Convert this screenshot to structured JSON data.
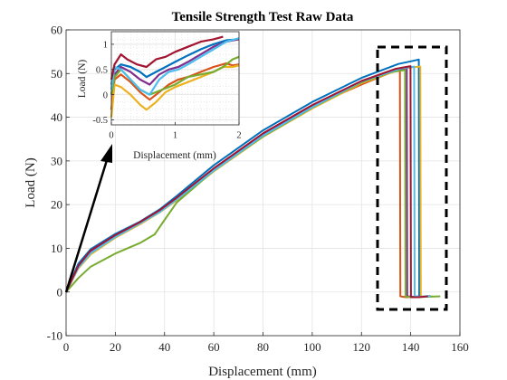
{
  "chart_data": [
    {
      "id": "main",
      "type": "line",
      "title": "Tensile Strength Test Raw Data",
      "xlabel": "Displacement (mm)",
      "ylabel": "Load (N)",
      "xlim": [
        0,
        160
      ],
      "ylim": [
        -10,
        60
      ],
      "xticks": [
        0,
        20,
        40,
        60,
        80,
        100,
        120,
        140,
        160
      ],
      "yticks": [
        -10,
        0,
        10,
        20,
        30,
        40,
        50,
        60
      ],
      "grid": true,
      "series": [
        {
          "color": "#0072BD",
          "x": [
            0,
            5,
            10,
            20,
            30,
            38,
            45,
            60,
            80,
            100,
            120,
            135,
            140,
            143.3,
            143.5,
            144,
            146,
            148
          ],
          "y": [
            0,
            6.5,
            9.8,
            13.3,
            16.1,
            18.9,
            22,
            29,
            37,
            43.5,
            49,
            52.2,
            52.8,
            53.2,
            -1,
            -1.1,
            -1,
            -0.9
          ]
        },
        {
          "color": "#D95319",
          "x": [
            0,
            5,
            10,
            20,
            30,
            38,
            45,
            60,
            80,
            100,
            120,
            133,
            135.6,
            135.8,
            138,
            141,
            144
          ],
          "y": [
            0,
            5.7,
            9.0,
            12.7,
            15.6,
            18.4,
            21.3,
            28,
            36,
            42.5,
            47.5,
            50.5,
            51.1,
            -1,
            -1.2,
            -1.1,
            -1
          ]
        },
        {
          "color": "#EDB120",
          "x": [
            0,
            5,
            10,
            20,
            30,
            38,
            45,
            60,
            80,
            100,
            120,
            135,
            140,
            143.9,
            144.1,
            146,
            149
          ],
          "y": [
            0,
            5.4,
            8.6,
            12.4,
            15.5,
            18.2,
            21,
            27.6,
            35.5,
            42,
            47.8,
            50.8,
            51.4,
            51.6,
            -1,
            -1.1,
            -1
          ]
        },
        {
          "color": "#7E2F8E",
          "x": [
            0,
            5,
            10,
            20,
            30,
            38,
            45,
            60,
            80,
            100,
            120,
            132,
            138.4,
            138.6,
            141,
            144
          ],
          "y": [
            0,
            5.8,
            9.3,
            12.9,
            15.9,
            18.6,
            21.5,
            28.2,
            36.2,
            42.6,
            48,
            50.6,
            51.3,
            -1,
            -1.1,
            -1
          ]
        },
        {
          "color": "#77AC30",
          "x": [
            0,
            5,
            10,
            20,
            30,
            36,
            40,
            45,
            60,
            80,
            100,
            120,
            132,
            137.7,
            137.9,
            142,
            147,
            152
          ],
          "y": [
            0,
            3.2,
            5.8,
            8.8,
            11.2,
            13.2,
            16.5,
            20.5,
            27.8,
            35.6,
            42.2,
            48,
            50.3,
            50.8,
            -1.1,
            -1.2,
            -1.1,
            -1
          ]
        },
        {
          "color": "#4DBEEE",
          "x": [
            0,
            5,
            10,
            20,
            30,
            38,
            45,
            60,
            80,
            100,
            120,
            136,
            141.4,
            141.6,
            144,
            148
          ],
          "y": [
            0,
            5.6,
            8.9,
            12.6,
            15.7,
            18.3,
            21.2,
            27.8,
            35.8,
            42.3,
            48.2,
            51.2,
            51.6,
            -1,
            -1.1,
            -1
          ]
        },
        {
          "color": "#A2142F",
          "x": [
            0,
            5,
            10,
            20,
            30,
            38,
            45,
            60,
            80,
            100,
            120,
            134,
            139.9,
            140.1,
            143,
            147
          ],
          "y": [
            0,
            6,
            9.5,
            13,
            16,
            18.7,
            21.6,
            28.3,
            36.3,
            42.8,
            48.3,
            51.1,
            51.7,
            -1.2,
            -1.2,
            -1
          ]
        }
      ]
    },
    {
      "id": "inset",
      "type": "line",
      "xlabel": "Displacement (mm)",
      "ylabel": "Load (N)",
      "xlim": [
        0,
        2
      ],
      "ylim": [
        -0.6,
        1.25
      ],
      "xticks": [
        0,
        1,
        2
      ],
      "yticks": [
        -0.5,
        0,
        0.5,
        1
      ],
      "grid": true,
      "minor_grid": true,
      "series": [
        {
          "color": "#0072BD",
          "x": [
            0,
            0.05,
            0.15,
            0.3,
            0.45,
            0.55,
            0.7,
            0.85,
            1.0,
            1.2,
            1.4,
            1.6,
            1.8,
            2.0
          ],
          "y": [
            0.2,
            0.5,
            0.6,
            0.55,
            0.45,
            0.35,
            0.45,
            0.55,
            0.65,
            0.78,
            0.9,
            1.0,
            1.08,
            1.1
          ]
        },
        {
          "color": "#D95319",
          "x": [
            0,
            0.05,
            0.15,
            0.3,
            0.45,
            0.6,
            0.75,
            0.9,
            1.05,
            1.2,
            1.4,
            1.6,
            1.8,
            1.9,
            2.0
          ],
          "y": [
            -0.3,
            0.3,
            0.4,
            0.25,
            0.05,
            -0.1,
            0.05,
            0.2,
            0.3,
            0.35,
            0.45,
            0.55,
            0.62,
            0.58,
            0.6
          ]
        },
        {
          "color": "#EDB120",
          "x": [
            0,
            0.05,
            0.15,
            0.3,
            0.45,
            0.55,
            0.7,
            0.85,
            1.0,
            1.2,
            1.4,
            1.6,
            1.75,
            1.9,
            2.0
          ],
          "y": [
            -0.45,
            0.2,
            0.15,
            0.0,
            -0.2,
            -0.3,
            -0.15,
            0.05,
            0.15,
            0.25,
            0.35,
            0.45,
            0.55,
            0.55,
            0.58
          ]
        },
        {
          "color": "#7E2F8E",
          "x": [
            0,
            0.05,
            0.15,
            0.3,
            0.45,
            0.6,
            0.75,
            0.9,
            1.05,
            1.2,
            1.4,
            1.6,
            1.8,
            2.0
          ],
          "y": [
            0.0,
            0.4,
            0.55,
            0.45,
            0.3,
            0.2,
            0.4,
            0.5,
            0.55,
            0.65,
            0.8,
            0.95,
            1.05,
            1.1
          ]
        },
        {
          "color": "#77AC30",
          "x": [
            0,
            0.05,
            0.15,
            0.3,
            0.45,
            0.6,
            0.8,
            1.0,
            1.2,
            1.4,
            1.6,
            1.75,
            1.9,
            2.0
          ],
          "y": [
            0.0,
            0.35,
            0.5,
            0.3,
            0.1,
            0.0,
            0.1,
            0.2,
            0.35,
            0.4,
            0.45,
            0.55,
            0.7,
            0.75
          ]
        },
        {
          "color": "#4DBEEE",
          "x": [
            0,
            0.05,
            0.15,
            0.3,
            0.45,
            0.6,
            0.75,
            0.9,
            1.05,
            1.2,
            1.4,
            1.6,
            1.8,
            2.0
          ],
          "y": [
            0.1,
            0.55,
            0.5,
            0.3,
            0.1,
            0.0,
            0.3,
            0.45,
            0.5,
            0.6,
            0.75,
            0.9,
            1.05,
            1.12
          ]
        },
        {
          "color": "#A2142F",
          "x": [
            0,
            0.05,
            0.15,
            0.25,
            0.4,
            0.55,
            0.7,
            0.85,
            1.0,
            1.2,
            1.4,
            1.6,
            1.75
          ],
          "y": [
            0.3,
            0.6,
            0.8,
            0.7,
            0.6,
            0.55,
            0.7,
            0.75,
            0.85,
            0.95,
            1.05,
            1.1,
            1.15
          ]
        }
      ]
    }
  ]
}
